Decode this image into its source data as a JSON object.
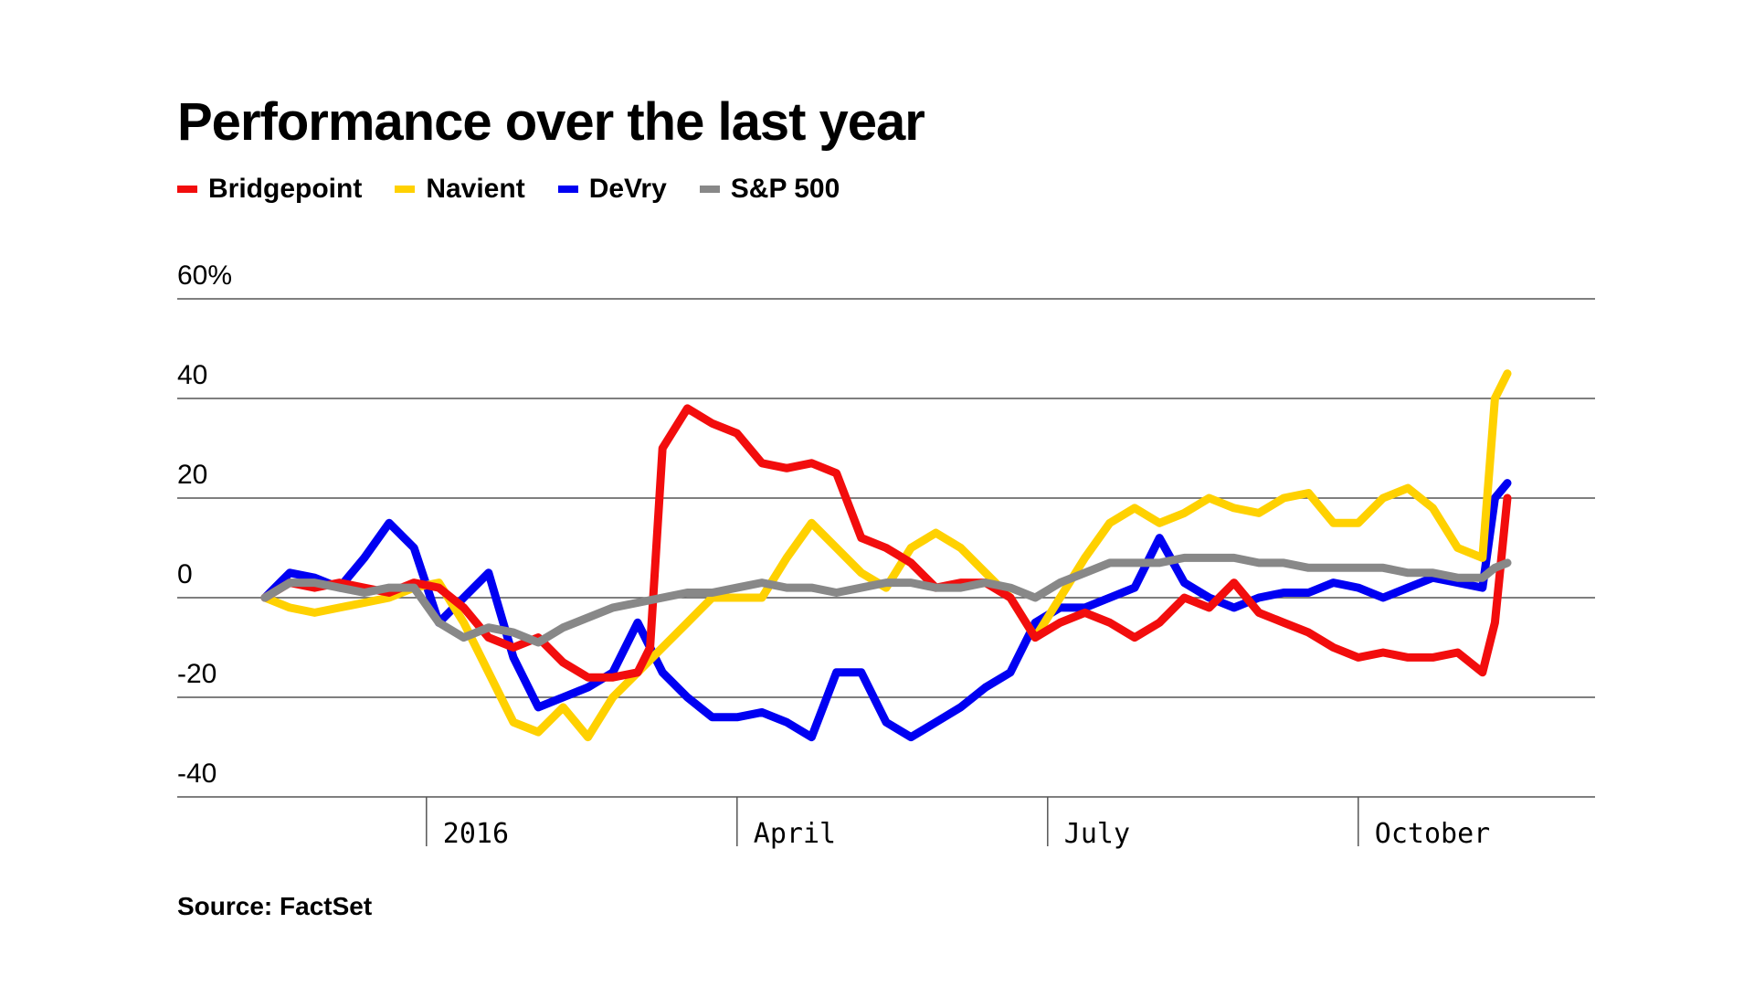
{
  "chart_data": {
    "type": "line",
    "title": "Performance over the last year",
    "source": "Source: FactSet",
    "ylim": [
      -40,
      60
    ],
    "y_ticks": [
      {
        "value": 60,
        "label": "60%"
      },
      {
        "value": 40,
        "label": "40"
      },
      {
        "value": 20,
        "label": "20"
      },
      {
        "value": 0,
        "label": "0"
      },
      {
        "value": -20,
        "label": "-20"
      },
      {
        "value": -40,
        "label": "-40"
      }
    ],
    "grid": true,
    "legend_position": "top-left",
    "x_ticks": [
      {
        "value": 0.13,
        "label": "2016"
      },
      {
        "value": 0.38,
        "label": "April"
      },
      {
        "value": 0.63,
        "label": "July"
      },
      {
        "value": 0.88,
        "label": "October"
      }
    ],
    "series": [
      {
        "name": "Bridgepoint",
        "color": "#f20d0d",
        "x": [
          0.0,
          0.02,
          0.04,
          0.06,
          0.08,
          0.1,
          0.12,
          0.14,
          0.16,
          0.18,
          0.2,
          0.22,
          0.24,
          0.26,
          0.28,
          0.3,
          0.31,
          0.32,
          0.34,
          0.36,
          0.38,
          0.4,
          0.42,
          0.44,
          0.46,
          0.48,
          0.5,
          0.52,
          0.54,
          0.56,
          0.58,
          0.6,
          0.62,
          0.64,
          0.66,
          0.68,
          0.7,
          0.72,
          0.74,
          0.76,
          0.78,
          0.8,
          0.82,
          0.84,
          0.86,
          0.88,
          0.9,
          0.92,
          0.94,
          0.96,
          0.98,
          0.99,
          1.0
        ],
        "values": [
          0,
          3,
          2,
          3,
          2,
          1,
          3,
          2,
          -2,
          -8,
          -10,
          -8,
          -13,
          -16,
          -16,
          -15,
          -10,
          30,
          38,
          35,
          33,
          27,
          26,
          27,
          25,
          12,
          10,
          7,
          2,
          3,
          3,
          0,
          -8,
          -5,
          -3,
          -5,
          -8,
          -5,
          0,
          -2,
          3,
          -3,
          -5,
          -7,
          -10,
          -12,
          -11,
          -12,
          -12,
          -11,
          -15,
          -5,
          20
        ]
      },
      {
        "name": "Navient",
        "color": "#ffd100",
        "x": [
          0.0,
          0.02,
          0.04,
          0.06,
          0.08,
          0.1,
          0.12,
          0.14,
          0.16,
          0.18,
          0.2,
          0.22,
          0.24,
          0.26,
          0.28,
          0.3,
          0.32,
          0.34,
          0.36,
          0.38,
          0.4,
          0.42,
          0.44,
          0.46,
          0.48,
          0.5,
          0.52,
          0.54,
          0.56,
          0.58,
          0.6,
          0.62,
          0.64,
          0.66,
          0.68,
          0.7,
          0.72,
          0.74,
          0.76,
          0.78,
          0.8,
          0.82,
          0.84,
          0.86,
          0.88,
          0.9,
          0.92,
          0.94,
          0.96,
          0.98,
          0.99,
          1.0
        ],
        "values": [
          0,
          -2,
          -3,
          -2,
          -1,
          0,
          2,
          3,
          -5,
          -15,
          -25,
          -27,
          -22,
          -28,
          -20,
          -15,
          -10,
          -5,
          0,
          0,
          0,
          8,
          15,
          10,
          5,
          2,
          10,
          13,
          10,
          5,
          0,
          -8,
          0,
          8,
          15,
          18,
          15,
          17,
          20,
          18,
          17,
          20,
          21,
          15,
          15,
          20,
          22,
          18,
          10,
          8,
          40,
          45
        ]
      },
      {
        "name": "DeVry",
        "color": "#0000f2",
        "x": [
          0.0,
          0.02,
          0.04,
          0.06,
          0.08,
          0.1,
          0.12,
          0.14,
          0.16,
          0.18,
          0.2,
          0.22,
          0.24,
          0.26,
          0.28,
          0.3,
          0.32,
          0.34,
          0.36,
          0.38,
          0.4,
          0.42,
          0.44,
          0.46,
          0.48,
          0.5,
          0.52,
          0.54,
          0.56,
          0.58,
          0.6,
          0.62,
          0.64,
          0.66,
          0.68,
          0.7,
          0.72,
          0.74,
          0.76,
          0.78,
          0.8,
          0.82,
          0.84,
          0.86,
          0.88,
          0.9,
          0.92,
          0.94,
          0.96,
          0.98,
          0.99,
          1.0
        ],
        "values": [
          0,
          5,
          4,
          2,
          8,
          15,
          10,
          -5,
          0,
          5,
          -12,
          -22,
          -20,
          -18,
          -15,
          -5,
          -15,
          -20,
          -24,
          -24,
          -23,
          -25,
          -28,
          -15,
          -15,
          -25,
          -28,
          -25,
          -22,
          -18,
          -15,
          -5,
          -2,
          -2,
          0,
          2,
          12,
          3,
          0,
          -2,
          0,
          1,
          1,
          3,
          2,
          0,
          2,
          4,
          3,
          2,
          20,
          23
        ]
      },
      {
        "name": "S&P 500",
        "color": "#888888",
        "x": [
          0.0,
          0.02,
          0.04,
          0.06,
          0.08,
          0.1,
          0.12,
          0.14,
          0.16,
          0.18,
          0.2,
          0.22,
          0.24,
          0.26,
          0.28,
          0.3,
          0.32,
          0.34,
          0.36,
          0.38,
          0.4,
          0.42,
          0.44,
          0.46,
          0.48,
          0.5,
          0.52,
          0.54,
          0.56,
          0.58,
          0.6,
          0.62,
          0.64,
          0.66,
          0.68,
          0.7,
          0.72,
          0.74,
          0.76,
          0.78,
          0.8,
          0.82,
          0.84,
          0.86,
          0.88,
          0.9,
          0.92,
          0.94,
          0.96,
          0.98,
          0.99,
          1.0
        ],
        "values": [
          0,
          3,
          3,
          2,
          1,
          2,
          2,
          -5,
          -8,
          -6,
          -7,
          -9,
          -6,
          -4,
          -2,
          -1,
          0,
          1,
          1,
          2,
          3,
          2,
          2,
          1,
          2,
          3,
          3,
          2,
          2,
          3,
          2,
          0,
          3,
          5,
          7,
          7,
          7,
          8,
          8,
          8,
          7,
          7,
          6,
          6,
          6,
          6,
          5,
          5,
          4,
          4,
          6,
          7
        ]
      }
    ]
  }
}
